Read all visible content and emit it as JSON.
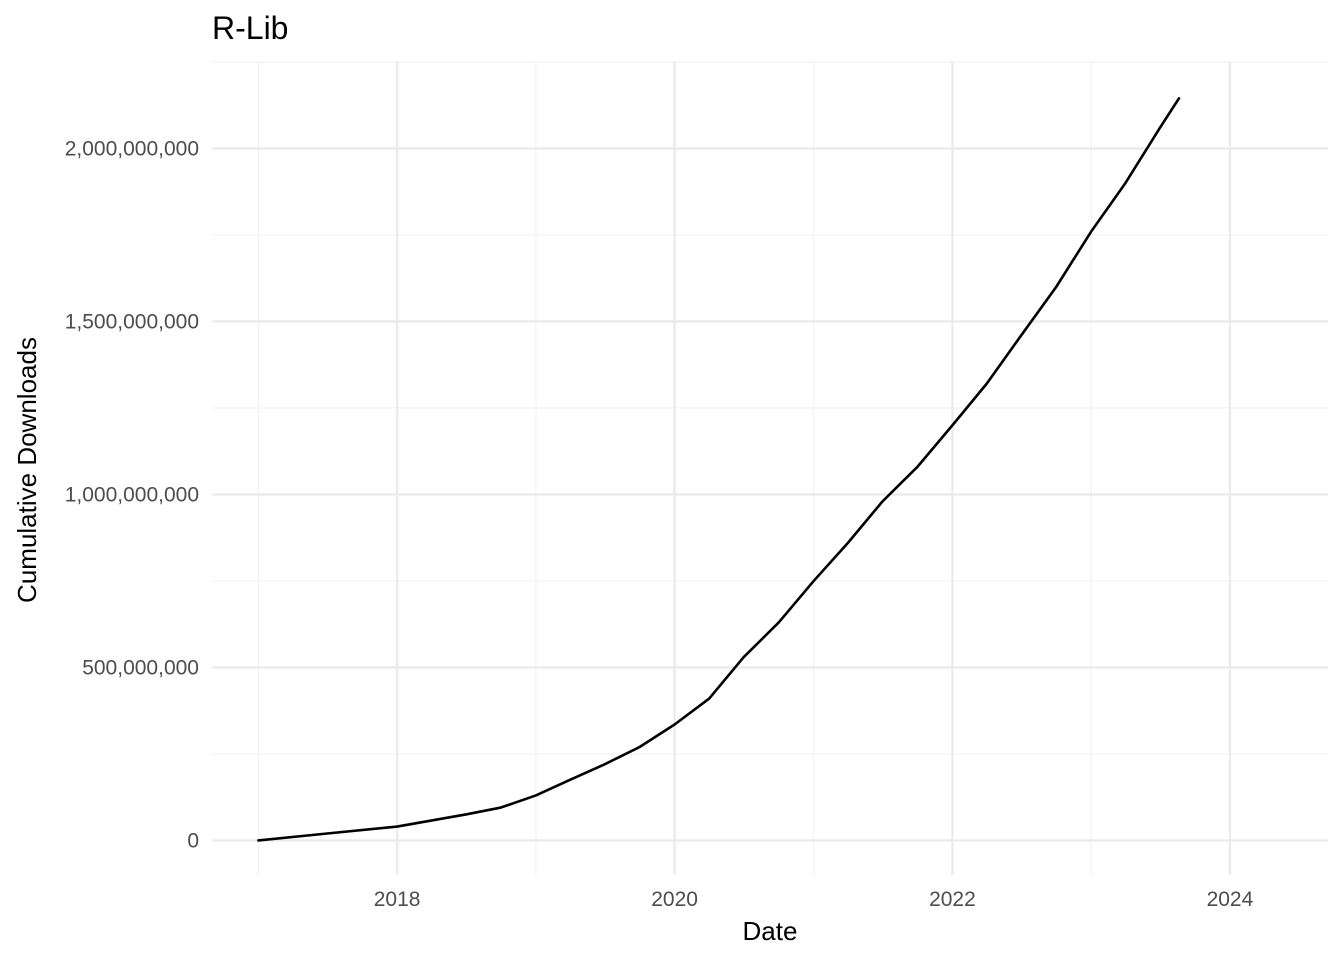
{
  "chart_data": {
    "type": "line",
    "title": "R-Lib",
    "xlabel": "Date",
    "ylabel": "Cumulative Downloads",
    "x_ticks": [
      "2018",
      "2020",
      "2022",
      "2024"
    ],
    "y_ticks": [
      "0",
      "500,000,000",
      "1,000,000,000",
      "1,500,000,000",
      "2,000,000,000"
    ],
    "xlim": [
      "2016-09-01",
      "2024-09-15"
    ],
    "ylim": [
      -100000000,
      2250000000
    ],
    "grid": true,
    "legend": "none",
    "series": [
      {
        "color": "#000000",
        "points": [
          [
            "2017-01-01",
            0
          ],
          [
            "2017-07-01",
            20000000
          ],
          [
            "2018-01-01",
            40000000
          ],
          [
            "2018-07-01",
            75000000
          ],
          [
            "2018-10-01",
            95000000
          ],
          [
            "2019-01-01",
            130000000
          ],
          [
            "2019-04-01",
            175000000
          ],
          [
            "2019-07-01",
            220000000
          ],
          [
            "2019-10-01",
            270000000
          ],
          [
            "2020-01-01",
            335000000
          ],
          [
            "2020-04-01",
            410000000
          ],
          [
            "2020-07-01",
            530000000
          ],
          [
            "2020-10-01",
            630000000
          ],
          [
            "2021-01-01",
            750000000
          ],
          [
            "2021-04-01",
            860000000
          ],
          [
            "2021-07-01",
            980000000
          ],
          [
            "2021-10-01",
            1080000000
          ],
          [
            "2022-01-01",
            1200000000
          ],
          [
            "2022-04-01",
            1320000000
          ],
          [
            "2022-07-01",
            1460000000
          ],
          [
            "2022-10-01",
            1600000000
          ],
          [
            "2023-01-01",
            1760000000
          ],
          [
            "2023-04-01",
            1900000000
          ],
          [
            "2023-07-01",
            2060000000
          ],
          [
            "2023-08-20",
            2145000000
          ]
        ]
      }
    ]
  }
}
